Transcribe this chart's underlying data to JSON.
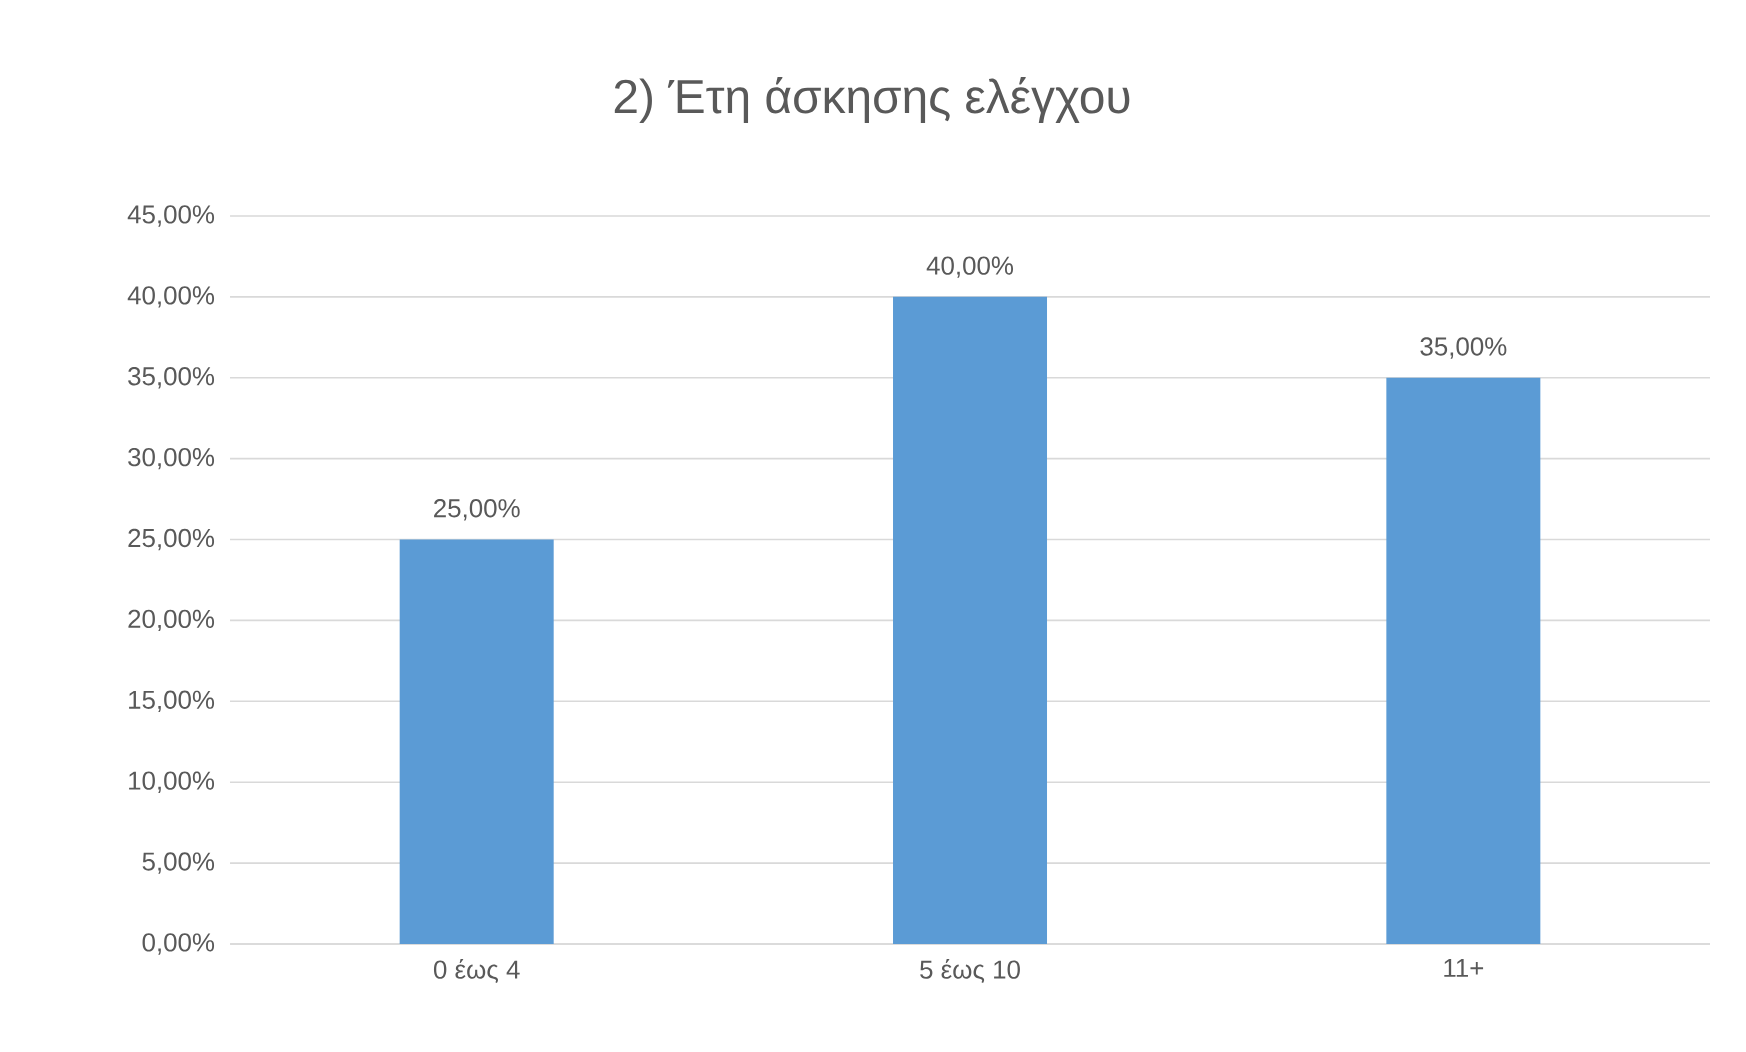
{
  "chart_data": {
    "type": "bar",
    "title": "2) Έτη άσκησης ελέγχου",
    "categories": [
      "0 έως 4",
      "5 έως 10",
      "11+"
    ],
    "values": [
      25,
      40,
      35
    ],
    "value_labels": [
      "25,00%",
      "40,00%",
      "35,00%"
    ],
    "color": "#5b9bd5",
    "ylim": [
      0,
      45
    ],
    "yticks": [
      {
        "value": 0,
        "label": "0,00%"
      },
      {
        "value": 5,
        "label": "5,00%"
      },
      {
        "value": 10,
        "label": "10,00%"
      },
      {
        "value": 15,
        "label": "15,00%"
      },
      {
        "value": 20,
        "label": "20,00%"
      },
      {
        "value": 25,
        "label": "25,00%"
      },
      {
        "value": 30,
        "label": "30,00%"
      },
      {
        "value": 35,
        "label": "35,00%"
      },
      {
        "value": 40,
        "label": "40,00%"
      },
      {
        "value": 45,
        "label": "45,00%"
      }
    ],
    "grid": "y"
  }
}
